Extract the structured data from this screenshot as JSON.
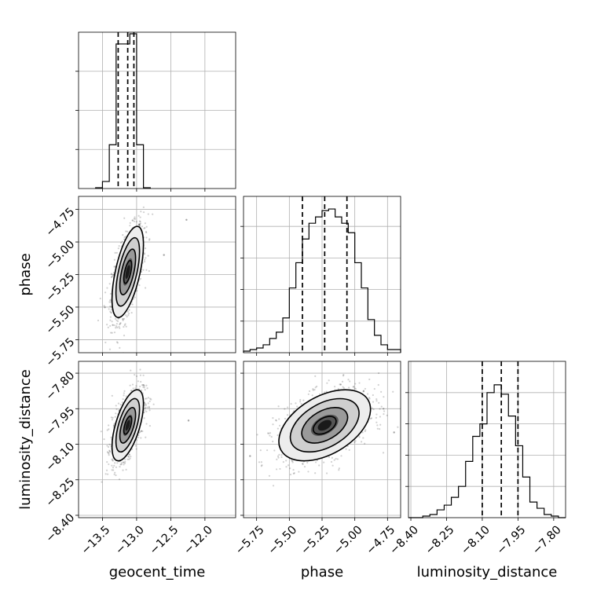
{
  "chart_data": {
    "type": "corner",
    "parameters": [
      "geocent_time",
      "phase",
      "luminosity_distance"
    ],
    "axes": {
      "geocent_time": {
        "label": "geocent_time",
        "range": [
          -13.85,
          -11.55
        ],
        "ticks": [
          -13.5,
          -13.0,
          -12.5,
          -12.0
        ],
        "tick_labels": [
          "−13.5",
          "−13.0",
          "−12.5",
          "−12.0"
        ]
      },
      "phase": {
        "label": "phase",
        "range": [
          -5.85,
          -4.65
        ],
        "ticks": [
          -5.75,
          -5.5,
          -5.25,
          -5.0,
          -4.75
        ],
        "tick_labels": [
          "−5.75",
          "−5.50",
          "−5.25",
          "−5.00",
          "−4.75"
        ]
      },
      "luminosity_distance": {
        "label": "luminosity_distance",
        "range": [
          -8.41,
          -7.75
        ],
        "ticks": [
          -8.4,
          -8.25,
          -8.1,
          -7.95,
          -7.8
        ],
        "tick_labels": [
          "−8.40",
          "−8.25",
          "−8.10",
          "−7.95",
          "−7.80"
        ]
      }
    },
    "histograms": {
      "geocent_time": {
        "edges": [
          -13.6,
          -13.5,
          -13.4,
          -13.3,
          -13.2,
          -13.1,
          -13.0,
          -12.9,
          -12.8
        ],
        "counts": [
          1,
          9,
          56,
          185,
          185,
          198,
          56,
          1
        ],
        "ymax": 200,
        "quantiles": [
          -13.27,
          -13.13,
          -13.04
        ]
      },
      "phase": {
        "edges": [
          -5.85,
          -5.8,
          -5.75,
          -5.7,
          -5.65,
          -5.6,
          -5.55,
          -5.5,
          -5.45,
          -5.4,
          -5.35,
          -5.3,
          -5.25,
          -5.2,
          -5.15,
          -5.1,
          -5.05,
          -5.0,
          -4.95,
          -4.9,
          -4.85,
          -4.8,
          -4.75,
          -4.7,
          -4.65
        ],
        "counts": [
          1,
          2,
          3,
          5,
          9,
          13,
          22,
          41,
          57,
          72,
          82,
          86,
          90,
          91,
          86,
          82,
          76,
          57,
          41,
          21,
          11,
          5,
          2,
          2
        ],
        "ymax": 99,
        "quantiles": [
          -5.4,
          -5.23,
          -5.06
        ]
      },
      "luminosity_distance": {
        "edges": [
          -8.41,
          -8.38,
          -8.35,
          -8.32,
          -8.29,
          -8.26,
          -8.23,
          -8.2,
          -8.17,
          -8.14,
          -8.11,
          -8.08,
          -8.05,
          -8.02,
          -7.99,
          -7.96,
          -7.93,
          -7.9,
          -7.87,
          -7.84,
          -7.81,
          -7.78,
          -7.75
        ],
        "counts": [
          0,
          0,
          1,
          2,
          5,
          8,
          13,
          20,
          36,
          52,
          60,
          80,
          85,
          79,
          65,
          46,
          26,
          10,
          6,
          2,
          1,
          0
        ],
        "ymax": 100,
        "quantiles": [
          -8.1,
          -8.02,
          -7.95
        ]
      }
    },
    "joint": [
      {
        "x": "geocent_time",
        "y": "phase",
        "center": [
          -13.13,
          -5.23
        ],
        "sigma": [
          0.115,
          0.175
        ],
        "rho": 0.6,
        "contour_levels_sigma": [
          0.5,
          1.0,
          1.5,
          2.0
        ],
        "outliers": [
          [
            -12.27,
            -4.83
          ],
          [
            -12.6,
            -5.1
          ]
        ]
      },
      {
        "x": "geocent_time",
        "y": "luminosity_distance",
        "center": [
          -13.13,
          -8.02
        ],
        "sigma": [
          0.115,
          0.075
        ],
        "rho": 0.6,
        "contour_levels_sigma": [
          0.5,
          1.0,
          1.5,
          2.0
        ],
        "outliers": [
          [
            -12.24,
            -8.0
          ],
          [
            -12.9,
            -7.85
          ]
        ]
      },
      {
        "x": "phase",
        "y": "luminosity_distance",
        "center": [
          -5.23,
          -8.02
        ],
        "sigma": [
          0.175,
          0.075
        ],
        "rho": 0.45,
        "contour_levels_sigma": [
          0.5,
          1.0,
          1.5,
          2.0
        ],
        "outliers": [
          [
            -4.7,
            -8.05
          ],
          [
            -5.8,
            -8.15
          ]
        ]
      }
    ],
    "grid": true
  }
}
